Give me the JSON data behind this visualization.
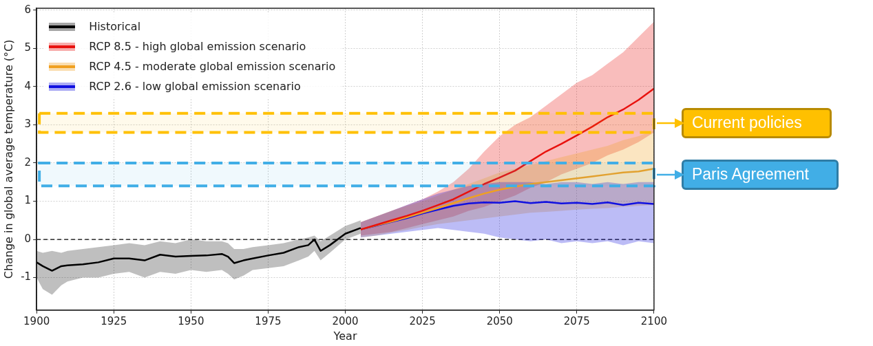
{
  "chart_data": {
    "type": "line",
    "xlabel": "Year",
    "ylabel": "Change in global average temperature (°C)",
    "xlim": [
      1900,
      2100
    ],
    "xticks": [
      1900,
      1925,
      1950,
      1975,
      2000,
      2025,
      2050,
      2075,
      2100
    ],
    "ylim": [
      -1.85,
      6.05
    ],
    "yticks": [
      -1,
      0,
      1,
      2,
      3,
      4,
      5,
      6
    ],
    "grid": true,
    "legend": "top left",
    "line_style": "solid",
    "marker": "none",
    "series": [
      {
        "name": "Historical",
        "color": "#000000",
        "x": [
          1900,
          1902,
          1905,
          1908,
          1910,
          1915,
          1920,
          1925,
          1930,
          1935,
          1940,
          1945,
          1950,
          1955,
          1960,
          1962,
          1964,
          1967,
          1970,
          1975,
          1980,
          1985,
          1988,
          1990,
          1992,
          1995,
          2000,
          2005
        ],
        "values": [
          -0.6,
          -0.7,
          -0.82,
          -0.7,
          -0.68,
          -0.65,
          -0.6,
          -0.5,
          -0.5,
          -0.55,
          -0.4,
          -0.45,
          -0.43,
          -0.42,
          -0.38,
          -0.45,
          -0.62,
          -0.55,
          -0.5,
          -0.42,
          -0.35,
          -0.2,
          -0.15,
          0.0,
          -0.3,
          -0.15,
          0.15,
          0.3
        ],
        "lower": [
          -1.0,
          -1.3,
          -1.45,
          -1.2,
          -1.1,
          -1.0,
          -1.0,
          -0.9,
          -0.85,
          -1.0,
          -0.85,
          -0.9,
          -0.8,
          -0.85,
          -0.8,
          -0.9,
          -1.05,
          -0.95,
          -0.8,
          -0.75,
          -0.7,
          -0.55,
          -0.45,
          -0.3,
          -0.55,
          -0.35,
          0.0,
          0.15
        ],
        "upper": [
          -0.3,
          -0.35,
          -0.3,
          -0.35,
          -0.3,
          -0.25,
          -0.2,
          -0.15,
          -0.1,
          -0.15,
          -0.05,
          -0.1,
          0.0,
          -0.05,
          -0.05,
          -0.1,
          -0.25,
          -0.25,
          -0.2,
          -0.15,
          -0.1,
          0.0,
          0.05,
          0.1,
          -0.05,
          0.1,
          0.35,
          0.5
        ]
      },
      {
        "name": "RCP 8.5 - high global emission scenario",
        "color": "#e8120e",
        "x": [
          2005,
          2010,
          2015,
          2020,
          2025,
          2030,
          2035,
          2040,
          2045,
          2050,
          2055,
          2060,
          2065,
          2070,
          2075,
          2080,
          2085,
          2090,
          2095,
          2100
        ],
        "values": [
          0.26,
          0.38,
          0.5,
          0.62,
          0.75,
          0.9,
          1.05,
          1.25,
          1.45,
          1.62,
          1.8,
          2.05,
          2.3,
          2.5,
          2.72,
          2.95,
          3.2,
          3.4,
          3.65,
          3.95
        ],
        "lower": [
          0.1,
          0.15,
          0.2,
          0.3,
          0.4,
          0.5,
          0.6,
          0.75,
          0.85,
          1.0,
          1.15,
          1.35,
          1.5,
          1.7,
          1.85,
          2.0,
          2.2,
          2.35,
          2.55,
          2.8
        ],
        "upper": [
          0.45,
          0.6,
          0.75,
          0.9,
          1.05,
          1.25,
          1.5,
          1.85,
          2.3,
          2.7,
          3.0,
          3.2,
          3.5,
          3.8,
          4.1,
          4.3,
          4.6,
          4.9,
          5.3,
          5.7
        ]
      },
      {
        "name": "RCP 4.5 - moderate global emission scenario",
        "color": "#f0a020",
        "x": [
          2005,
          2010,
          2015,
          2020,
          2025,
          2030,
          2035,
          2040,
          2045,
          2050,
          2055,
          2060,
          2065,
          2070,
          2075,
          2080,
          2085,
          2090,
          2095,
          2100
        ],
        "values": [
          0.26,
          0.37,
          0.47,
          0.58,
          0.7,
          0.82,
          0.95,
          1.08,
          1.2,
          1.3,
          1.38,
          1.45,
          1.5,
          1.55,
          1.6,
          1.65,
          1.7,
          1.75,
          1.78,
          1.85
        ],
        "lower": [
          0.05,
          0.1,
          0.18,
          0.25,
          0.33,
          0.4,
          0.45,
          0.5,
          0.55,
          0.6,
          0.65,
          0.7,
          0.72,
          0.75,
          0.78,
          0.8,
          0.82,
          0.85,
          0.88,
          0.9
        ],
        "upper": [
          0.45,
          0.6,
          0.75,
          0.88,
          1.0,
          1.15,
          1.3,
          1.45,
          1.6,
          1.75,
          1.85,
          1.95,
          2.05,
          2.15,
          2.25,
          2.35,
          2.45,
          2.6,
          2.7,
          2.85
        ]
      },
      {
        "name": "RCP 2.6 - low global emission scenario",
        "color": "#1010e0",
        "x": [
          2005,
          2010,
          2015,
          2020,
          2025,
          2030,
          2035,
          2040,
          2045,
          2050,
          2055,
          2060,
          2065,
          2070,
          2075,
          2080,
          2085,
          2090,
          2095,
          2100
        ],
        "values": [
          0.26,
          0.36,
          0.46,
          0.56,
          0.68,
          0.78,
          0.88,
          0.94,
          0.97,
          0.96,
          1.0,
          0.95,
          0.98,
          0.94,
          0.96,
          0.93,
          0.97,
          0.9,
          0.96,
          0.93
        ],
        "lower": [
          0.05,
          0.1,
          0.15,
          0.2,
          0.25,
          0.3,
          0.25,
          0.2,
          0.15,
          0.05,
          0.0,
          -0.05,
          0.0,
          -0.1,
          -0.05,
          -0.1,
          -0.05,
          -0.15,
          -0.05,
          -0.1
        ],
        "upper": [
          0.45,
          0.6,
          0.75,
          0.9,
          1.05,
          1.2,
          1.3,
          1.4,
          1.45,
          1.5,
          1.5,
          1.5,
          1.45,
          1.5,
          1.5,
          1.45,
          1.5,
          1.45,
          1.5,
          1.5
        ]
      }
    ],
    "ref_lines": [
      {
        "axis": "y",
        "value": 0,
        "color": "#000000",
        "line_style": "dashed"
      }
    ],
    "bands": [
      {
        "axis": "y",
        "from": 2.8,
        "to": 3.3,
        "label": "Current policies",
        "color": "#ffc000"
      },
      {
        "axis": "y",
        "from": 1.4,
        "to": 2.0,
        "label": "Paris Agreement",
        "color": "#41aee6"
      }
    ]
  }
}
